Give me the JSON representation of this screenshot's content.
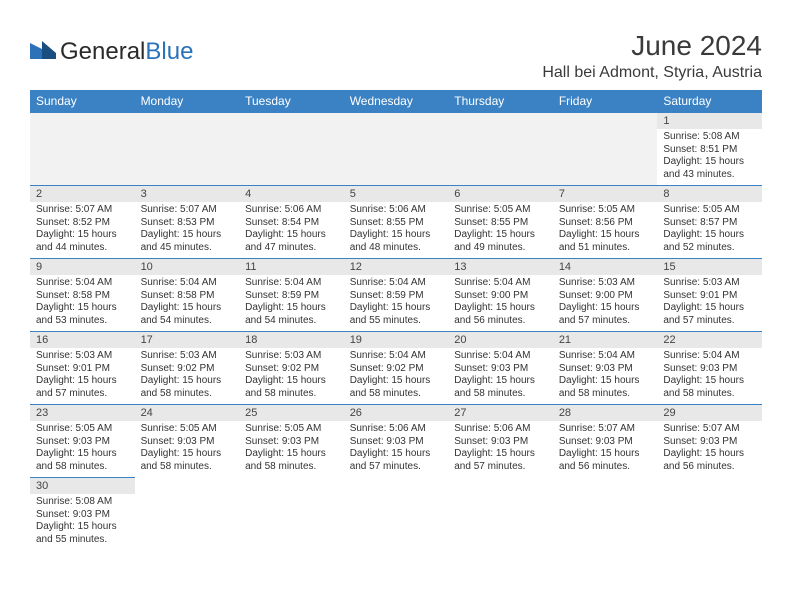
{
  "logo": {
    "main": "General",
    "accent": "Blue"
  },
  "title": "June 2024",
  "location": "Hall bei Admont, Styria, Austria",
  "colors": {
    "headerBg": "#3b82c4",
    "headerText": "#ffffff",
    "dayNumBg": "#e8e8e8",
    "borderColor": "#3b82c4",
    "emptyBg": "#f2f2f2",
    "textColor": "#333333"
  },
  "dayHeaders": [
    "Sunday",
    "Monday",
    "Tuesday",
    "Wednesday",
    "Thursday",
    "Friday",
    "Saturday"
  ],
  "weeks": [
    [
      null,
      null,
      null,
      null,
      null,
      null,
      {
        "n": "1",
        "sr": "5:08 AM",
        "ss": "8:51 PM",
        "dl1": "15 hours",
        "dl2": "and 43 minutes."
      }
    ],
    [
      {
        "n": "2",
        "sr": "5:07 AM",
        "ss": "8:52 PM",
        "dl1": "15 hours",
        "dl2": "and 44 minutes."
      },
      {
        "n": "3",
        "sr": "5:07 AM",
        "ss": "8:53 PM",
        "dl1": "15 hours",
        "dl2": "and 45 minutes."
      },
      {
        "n": "4",
        "sr": "5:06 AM",
        "ss": "8:54 PM",
        "dl1": "15 hours",
        "dl2": "and 47 minutes."
      },
      {
        "n": "5",
        "sr": "5:06 AM",
        "ss": "8:55 PM",
        "dl1": "15 hours",
        "dl2": "and 48 minutes."
      },
      {
        "n": "6",
        "sr": "5:05 AM",
        "ss": "8:55 PM",
        "dl1": "15 hours",
        "dl2": "and 49 minutes."
      },
      {
        "n": "7",
        "sr": "5:05 AM",
        "ss": "8:56 PM",
        "dl1": "15 hours",
        "dl2": "and 51 minutes."
      },
      {
        "n": "8",
        "sr": "5:05 AM",
        "ss": "8:57 PM",
        "dl1": "15 hours",
        "dl2": "and 52 minutes."
      }
    ],
    [
      {
        "n": "9",
        "sr": "5:04 AM",
        "ss": "8:58 PM",
        "dl1": "15 hours",
        "dl2": "and 53 minutes."
      },
      {
        "n": "10",
        "sr": "5:04 AM",
        "ss": "8:58 PM",
        "dl1": "15 hours",
        "dl2": "and 54 minutes."
      },
      {
        "n": "11",
        "sr": "5:04 AM",
        "ss": "8:59 PM",
        "dl1": "15 hours",
        "dl2": "and 54 minutes."
      },
      {
        "n": "12",
        "sr": "5:04 AM",
        "ss": "8:59 PM",
        "dl1": "15 hours",
        "dl2": "and 55 minutes."
      },
      {
        "n": "13",
        "sr": "5:04 AM",
        "ss": "9:00 PM",
        "dl1": "15 hours",
        "dl2": "and 56 minutes."
      },
      {
        "n": "14",
        "sr": "5:03 AM",
        "ss": "9:00 PM",
        "dl1": "15 hours",
        "dl2": "and 57 minutes."
      },
      {
        "n": "15",
        "sr": "5:03 AM",
        "ss": "9:01 PM",
        "dl1": "15 hours",
        "dl2": "and 57 minutes."
      }
    ],
    [
      {
        "n": "16",
        "sr": "5:03 AM",
        "ss": "9:01 PM",
        "dl1": "15 hours",
        "dl2": "and 57 minutes."
      },
      {
        "n": "17",
        "sr": "5:03 AM",
        "ss": "9:02 PM",
        "dl1": "15 hours",
        "dl2": "and 58 minutes."
      },
      {
        "n": "18",
        "sr": "5:03 AM",
        "ss": "9:02 PM",
        "dl1": "15 hours",
        "dl2": "and 58 minutes."
      },
      {
        "n": "19",
        "sr": "5:04 AM",
        "ss": "9:02 PM",
        "dl1": "15 hours",
        "dl2": "and 58 minutes."
      },
      {
        "n": "20",
        "sr": "5:04 AM",
        "ss": "9:03 PM",
        "dl1": "15 hours",
        "dl2": "and 58 minutes."
      },
      {
        "n": "21",
        "sr": "5:04 AM",
        "ss": "9:03 PM",
        "dl1": "15 hours",
        "dl2": "and 58 minutes."
      },
      {
        "n": "22",
        "sr": "5:04 AM",
        "ss": "9:03 PM",
        "dl1": "15 hours",
        "dl2": "and 58 minutes."
      }
    ],
    [
      {
        "n": "23",
        "sr": "5:05 AM",
        "ss": "9:03 PM",
        "dl1": "15 hours",
        "dl2": "and 58 minutes."
      },
      {
        "n": "24",
        "sr": "5:05 AM",
        "ss": "9:03 PM",
        "dl1": "15 hours",
        "dl2": "and 58 minutes."
      },
      {
        "n": "25",
        "sr": "5:05 AM",
        "ss": "9:03 PM",
        "dl1": "15 hours",
        "dl2": "and 58 minutes."
      },
      {
        "n": "26",
        "sr": "5:06 AM",
        "ss": "9:03 PM",
        "dl1": "15 hours",
        "dl2": "and 57 minutes."
      },
      {
        "n": "27",
        "sr": "5:06 AM",
        "ss": "9:03 PM",
        "dl1": "15 hours",
        "dl2": "and 57 minutes."
      },
      {
        "n": "28",
        "sr": "5:07 AM",
        "ss": "9:03 PM",
        "dl1": "15 hours",
        "dl2": "and 56 minutes."
      },
      {
        "n": "29",
        "sr": "5:07 AM",
        "ss": "9:03 PM",
        "dl1": "15 hours",
        "dl2": "and 56 minutes."
      }
    ],
    [
      {
        "n": "30",
        "sr": "5:08 AM",
        "ss": "9:03 PM",
        "dl1": "15 hours",
        "dl2": "and 55 minutes."
      },
      null,
      null,
      null,
      null,
      null,
      null
    ]
  ],
  "labels": {
    "sunrise": "Sunrise:",
    "sunset": "Sunset:",
    "daylight": "Daylight:"
  }
}
